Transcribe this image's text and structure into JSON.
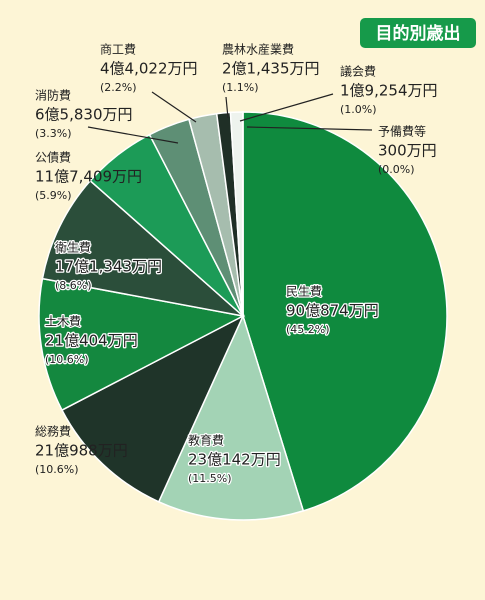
{
  "chart_data": {
    "type": "pie",
    "title": "目的別歳出",
    "categories": [
      "民生費",
      "教育費",
      "総務費",
      "土木費",
      "衛生費",
      "公債費",
      "消防費",
      "商工費",
      "農林水産業費",
      "議会費",
      "予備費等"
    ],
    "values": [
      900874,
      230142,
      210988,
      210404,
      171343,
      117409,
      65830,
      44022,
      21435,
      19254,
      300
    ],
    "value_labels": [
      "90億874万円",
      "23億142万円",
      "21億988万円",
      "21億404万円",
      "17億1,343万円",
      "11億7,409万円",
      "6億5,830万円",
      "4億4,022万円",
      "2億1,435万円",
      "1億9,254万円",
      "300万円"
    ],
    "percent_labels": [
      "(45.2%)",
      "(11.5%)",
      "(10.6%)",
      "(10.6%)",
      "(8.6%)",
      "(5.9%)",
      "(3.3%)",
      "(2.2%)",
      "(1.1%)",
      "(1.0%)",
      "(0.0%)"
    ],
    "colors": [
      "#0f8a3e",
      "#a3d3b5",
      "#1f3429",
      "#14883f",
      "#2b4e3a",
      "#1c9b57",
      "#5e8f75",
      "#a6bdae",
      "#1f2f26",
      "#eef3ee",
      "#c9c9d2"
    ]
  }
}
